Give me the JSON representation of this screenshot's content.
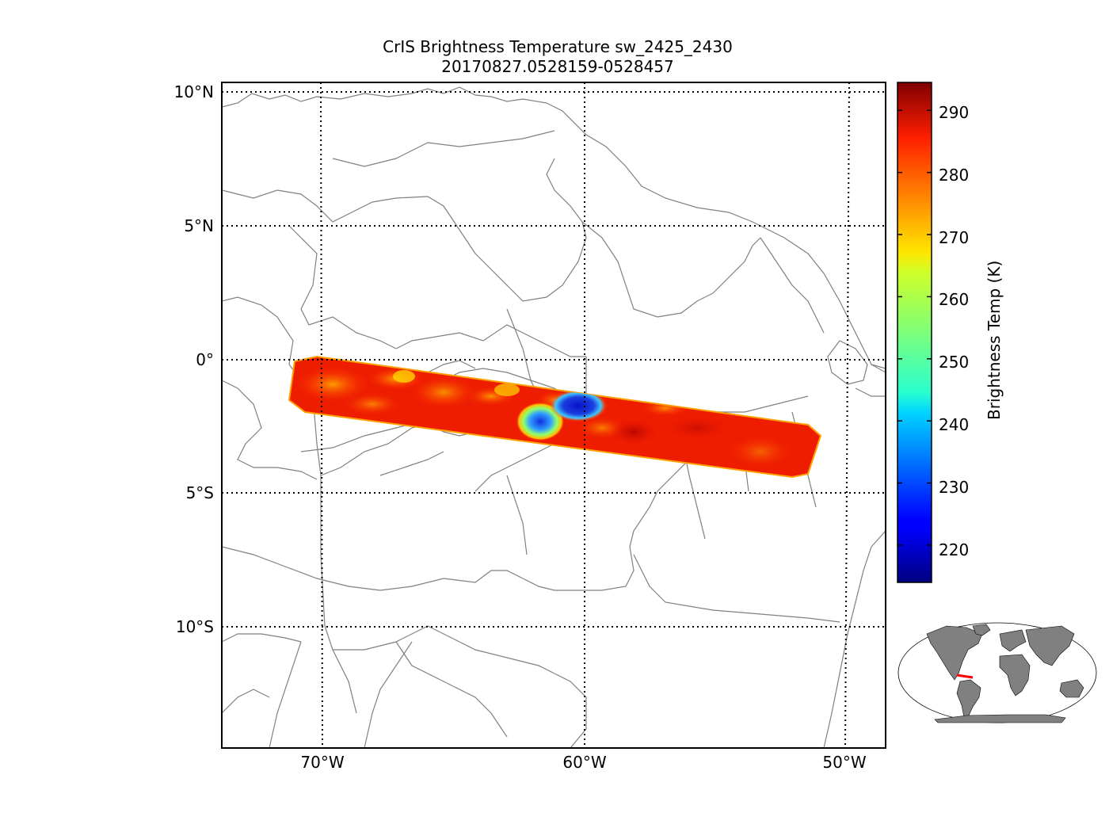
{
  "title": {
    "line1": "CrIS Brightness Temperature sw_2425_2430",
    "line2": "20170827.0528159-0528457"
  },
  "map": {
    "lat_labels": [
      "10°N",
      "5°N",
      "0°",
      "5°S",
      "10°S"
    ],
    "lon_labels": [
      "70°W",
      "60°W",
      "50°W"
    ],
    "lat_values": [
      10,
      5,
      0,
      -5,
      -10
    ],
    "lon_values": [
      -70,
      -60,
      -50
    ],
    "lon_range": [
      -73.7,
      -48.3
    ],
    "lat_range": [
      -14.7,
      10.3
    ],
    "grid": "dotted",
    "coastline_color": "#808080",
    "swath_dominant_value_K": 288,
    "swath_coldest_value_K": 218
  },
  "colorbar": {
    "label": "Brightness Temp (K)",
    "ticks": [
      "290",
      "280",
      "270",
      "260",
      "250",
      "240",
      "230",
      "220"
    ],
    "tick_values": [
      290,
      280,
      270,
      260,
      250,
      240,
      230,
      220
    ],
    "range": [
      214,
      294.5
    ],
    "colormap": "jet"
  },
  "inset": {
    "land_color": "#808080",
    "swath_color": "#ff0000"
  }
}
